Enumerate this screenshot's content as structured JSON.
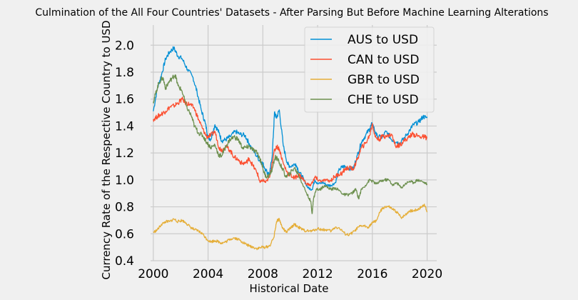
{
  "chart_data": {
    "type": "line",
    "title": "Culmination of the All Four Countries' Datasets - After Parsing But Before Machine Learning Alterations",
    "xlabel": "Historical Date",
    "ylabel": "Currency Rate of the Respective Country to USD",
    "xlim": [
      1999.8,
      2020.7
    ],
    "ylim": [
      0.4,
      2.15
    ],
    "xticks": [
      2000,
      2004,
      2008,
      2012,
      2016,
      2020
    ],
    "xtick_labels": [
      "2000",
      "2004",
      "2008",
      "2012",
      "2016",
      "2020"
    ],
    "yticks": [
      0.4,
      0.6,
      0.8,
      1.0,
      1.2,
      1.4,
      1.6,
      1.8,
      2.0
    ],
    "ytick_labels": [
      "0.4",
      "0.6",
      "0.8",
      "1.0",
      "1.2",
      "1.4",
      "1.6",
      "1.8",
      "2.0"
    ],
    "grid": true,
    "legend_position": "top-right",
    "series": [
      {
        "name": "AUS to USD",
        "color": "#008fd5",
        "points": [
          [
            2000.0,
            1.51
          ],
          [
            2000.3,
            1.68
          ],
          [
            2000.6,
            1.78
          ],
          [
            2000.9,
            1.9
          ],
          [
            2001.2,
            1.95
          ],
          [
            2001.5,
            1.98
          ],
          [
            2001.8,
            1.92
          ],
          [
            2002.1,
            1.9
          ],
          [
            2002.5,
            1.82
          ],
          [
            2002.9,
            1.76
          ],
          [
            2003.2,
            1.65
          ],
          [
            2003.5,
            1.52
          ],
          [
            2003.8,
            1.42
          ],
          [
            2004.0,
            1.32
          ],
          [
            2004.2,
            1.3
          ],
          [
            2004.5,
            1.41
          ],
          [
            2004.8,
            1.35
          ],
          [
            2005.0,
            1.29
          ],
          [
            2005.3,
            1.3
          ],
          [
            2005.6,
            1.32
          ],
          [
            2006.0,
            1.36
          ],
          [
            2006.3,
            1.34
          ],
          [
            2006.7,
            1.33
          ],
          [
            2007.0,
            1.27
          ],
          [
            2007.4,
            1.2
          ],
          [
            2007.8,
            1.14
          ],
          [
            2008.0,
            1.12
          ],
          [
            2008.3,
            1.06
          ],
          [
            2008.5,
            1.04
          ],
          [
            2008.7,
            1.2
          ],
          [
            2008.85,
            1.5
          ],
          [
            2009.0,
            1.46
          ],
          [
            2009.2,
            1.52
          ],
          [
            2009.5,
            1.25
          ],
          [
            2009.8,
            1.12
          ],
          [
            2010.0,
            1.1
          ],
          [
            2010.4,
            1.12
          ],
          [
            2010.7,
            1.05
          ],
          [
            2011.0,
            1.0
          ],
          [
            2011.3,
            0.94
          ],
          [
            2011.6,
            0.93
          ],
          [
            2011.8,
            1.0
          ],
          [
            2012.0,
            0.97
          ],
          [
            2012.4,
            0.98
          ],
          [
            2012.7,
            0.96
          ],
          [
            2013.0,
            0.96
          ],
          [
            2013.3,
            0.98
          ],
          [
            2013.6,
            1.08
          ],
          [
            2013.9,
            1.1
          ],
          [
            2014.2,
            1.09
          ],
          [
            2014.6,
            1.08
          ],
          [
            2014.9,
            1.18
          ],
          [
            2015.2,
            1.28
          ],
          [
            2015.5,
            1.33
          ],
          [
            2015.8,
            1.38
          ],
          [
            2016.0,
            1.42
          ],
          [
            2016.3,
            1.33
          ],
          [
            2016.7,
            1.31
          ],
          [
            2017.0,
            1.36
          ],
          [
            2017.4,
            1.3
          ],
          [
            2017.8,
            1.28
          ],
          [
            2018.0,
            1.27
          ],
          [
            2018.4,
            1.32
          ],
          [
            2018.8,
            1.38
          ],
          [
            2019.0,
            1.41
          ],
          [
            2019.4,
            1.43
          ],
          [
            2019.7,
            1.47
          ],
          [
            2020.0,
            1.46
          ]
        ]
      },
      {
        "name": "CAN to USD",
        "color": "#fc4f30",
        "points": [
          [
            2000.0,
            1.45
          ],
          [
            2000.3,
            1.47
          ],
          [
            2000.6,
            1.49
          ],
          [
            2000.9,
            1.51
          ],
          [
            2001.2,
            1.54
          ],
          [
            2001.5,
            1.55
          ],
          [
            2001.8,
            1.57
          ],
          [
            2002.1,
            1.6
          ],
          [
            2002.4,
            1.57
          ],
          [
            2002.7,
            1.56
          ],
          [
            2003.0,
            1.53
          ],
          [
            2003.3,
            1.45
          ],
          [
            2003.6,
            1.38
          ],
          [
            2003.9,
            1.32
          ],
          [
            2004.2,
            1.33
          ],
          [
            2004.5,
            1.36
          ],
          [
            2004.8,
            1.24
          ],
          [
            2005.0,
            1.22
          ],
          [
            2005.3,
            1.25
          ],
          [
            2005.6,
            1.22
          ],
          [
            2005.9,
            1.17
          ],
          [
            2006.2,
            1.15
          ],
          [
            2006.5,
            1.12
          ],
          [
            2006.8,
            1.13
          ],
          [
            2007.0,
            1.16
          ],
          [
            2007.3,
            1.1
          ],
          [
            2007.6,
            1.05
          ],
          [
            2007.8,
            0.98
          ],
          [
            2008.0,
            1.0
          ],
          [
            2008.2,
            0.98
          ],
          [
            2008.5,
            1.02
          ],
          [
            2008.8,
            1.2
          ],
          [
            2009.0,
            1.25
          ],
          [
            2009.2,
            1.23
          ],
          [
            2009.5,
            1.12
          ],
          [
            2009.8,
            1.05
          ],
          [
            2010.0,
            1.04
          ],
          [
            2010.3,
            1.01
          ],
          [
            2010.6,
            1.04
          ],
          [
            2010.9,
            1.01
          ],
          [
            2011.2,
            0.97
          ],
          [
            2011.5,
            0.96
          ],
          [
            2011.8,
            1.02
          ],
          [
            2012.0,
            1.0
          ],
          [
            2012.3,
            0.99
          ],
          [
            2012.6,
            1.0
          ],
          [
            2012.9,
            0.99
          ],
          [
            2013.2,
            1.02
          ],
          [
            2013.5,
            1.04
          ],
          [
            2013.8,
            1.05
          ],
          [
            2014.0,
            1.08
          ],
          [
            2014.3,
            1.09
          ],
          [
            2014.6,
            1.08
          ],
          [
            2014.9,
            1.15
          ],
          [
            2015.2,
            1.24
          ],
          [
            2015.5,
            1.27
          ],
          [
            2015.8,
            1.33
          ],
          [
            2016.0,
            1.42
          ],
          [
            2016.2,
            1.32
          ],
          [
            2016.5,
            1.3
          ],
          [
            2016.8,
            1.33
          ],
          [
            2017.0,
            1.32
          ],
          [
            2017.4,
            1.34
          ],
          [
            2017.7,
            1.25
          ],
          [
            2018.0,
            1.26
          ],
          [
            2018.3,
            1.29
          ],
          [
            2018.6,
            1.31
          ],
          [
            2018.9,
            1.34
          ],
          [
            2019.2,
            1.33
          ],
          [
            2019.5,
            1.32
          ],
          [
            2019.8,
            1.32
          ],
          [
            2020.0,
            1.31
          ]
        ]
      },
      {
        "name": "GBR to USD",
        "color": "#e5ae38",
        "points": [
          [
            2000.0,
            0.61
          ],
          [
            2000.3,
            0.63
          ],
          [
            2000.6,
            0.67
          ],
          [
            2000.9,
            0.69
          ],
          [
            2001.2,
            0.69
          ],
          [
            2001.5,
            0.71
          ],
          [
            2001.8,
            0.69
          ],
          [
            2002.1,
            0.7
          ],
          [
            2002.4,
            0.68
          ],
          [
            2002.7,
            0.65
          ],
          [
            2003.0,
            0.63
          ],
          [
            2003.3,
            0.62
          ],
          [
            2003.6,
            0.6
          ],
          [
            2003.9,
            0.56
          ],
          [
            2004.2,
            0.54
          ],
          [
            2004.5,
            0.55
          ],
          [
            2004.8,
            0.54
          ],
          [
            2005.0,
            0.53
          ],
          [
            2005.3,
            0.54
          ],
          [
            2005.6,
            0.56
          ],
          [
            2005.9,
            0.57
          ],
          [
            2006.2,
            0.56
          ],
          [
            2006.5,
            0.54
          ],
          [
            2006.8,
            0.52
          ],
          [
            2007.0,
            0.51
          ],
          [
            2007.3,
            0.5
          ],
          [
            2007.6,
            0.49
          ],
          [
            2007.9,
            0.5
          ],
          [
            2008.2,
            0.5
          ],
          [
            2008.5,
            0.51
          ],
          [
            2008.8,
            0.57
          ],
          [
            2009.0,
            0.69
          ],
          [
            2009.2,
            0.71
          ],
          [
            2009.4,
            0.65
          ],
          [
            2009.7,
            0.61
          ],
          [
            2010.0,
            0.64
          ],
          [
            2010.3,
            0.67
          ],
          [
            2010.6,
            0.65
          ],
          [
            2010.9,
            0.63
          ],
          [
            2011.2,
            0.62
          ],
          [
            2011.6,
            0.62
          ],
          [
            2012.0,
            0.64
          ],
          [
            2012.3,
            0.63
          ],
          [
            2012.6,
            0.63
          ],
          [
            2013.0,
            0.62
          ],
          [
            2013.3,
            0.65
          ],
          [
            2013.6,
            0.64
          ],
          [
            2014.0,
            0.6
          ],
          [
            2014.3,
            0.59
          ],
          [
            2014.7,
            0.62
          ],
          [
            2015.0,
            0.65
          ],
          [
            2015.3,
            0.66
          ],
          [
            2015.7,
            0.65
          ],
          [
            2016.0,
            0.68
          ],
          [
            2016.3,
            0.7
          ],
          [
            2016.6,
            0.77
          ],
          [
            2016.9,
            0.8
          ],
          [
            2017.2,
            0.8
          ],
          [
            2017.5,
            0.78
          ],
          [
            2017.8,
            0.76
          ],
          [
            2018.1,
            0.72
          ],
          [
            2018.4,
            0.74
          ],
          [
            2018.7,
            0.77
          ],
          [
            2019.0,
            0.77
          ],
          [
            2019.3,
            0.78
          ],
          [
            2019.6,
            0.8
          ],
          [
            2019.8,
            0.82
          ],
          [
            2020.0,
            0.76
          ]
        ]
      },
      {
        "name": "CHE to USD",
        "color": "#6d904f",
        "points": [
          [
            2000.0,
            1.58
          ],
          [
            2000.2,
            1.65
          ],
          [
            2000.4,
            1.72
          ],
          [
            2000.7,
            1.76
          ],
          [
            2000.9,
            1.68
          ],
          [
            2001.1,
            1.72
          ],
          [
            2001.4,
            1.76
          ],
          [
            2001.6,
            1.78
          ],
          [
            2001.8,
            1.7
          ],
          [
            2002.1,
            1.66
          ],
          [
            2002.4,
            1.55
          ],
          [
            2002.8,
            1.47
          ],
          [
            2003.0,
            1.4
          ],
          [
            2003.3,
            1.35
          ],
          [
            2003.6,
            1.33
          ],
          [
            2003.9,
            1.28
          ],
          [
            2004.2,
            1.24
          ],
          [
            2004.5,
            1.26
          ],
          [
            2004.8,
            1.18
          ],
          [
            2005.0,
            1.18
          ],
          [
            2005.3,
            1.25
          ],
          [
            2005.6,
            1.3
          ],
          [
            2005.9,
            1.32
          ],
          [
            2006.2,
            1.3
          ],
          [
            2006.5,
            1.24
          ],
          [
            2006.8,
            1.24
          ],
          [
            2007.0,
            1.25
          ],
          [
            2007.3,
            1.22
          ],
          [
            2007.6,
            1.2
          ],
          [
            2007.9,
            1.13
          ],
          [
            2008.1,
            1.05
          ],
          [
            2008.3,
            1.02
          ],
          [
            2008.6,
            1.05
          ],
          [
            2008.9,
            1.17
          ],
          [
            2009.1,
            1.15
          ],
          [
            2009.4,
            1.09
          ],
          [
            2009.7,
            1.02
          ],
          [
            2010.0,
            1.05
          ],
          [
            2010.3,
            1.09
          ],
          [
            2010.6,
            1.04
          ],
          [
            2010.9,
            0.97
          ],
          [
            2011.2,
            0.9
          ],
          [
            2011.5,
            0.84
          ],
          [
            2011.6,
            0.75
          ],
          [
            2011.7,
            0.86
          ],
          [
            2011.9,
            0.93
          ],
          [
            2012.2,
            0.93
          ],
          [
            2012.5,
            0.96
          ],
          [
            2012.8,
            0.94
          ],
          [
            2013.0,
            0.93
          ],
          [
            2013.3,
            0.94
          ],
          [
            2013.6,
            0.92
          ],
          [
            2013.9,
            0.89
          ],
          [
            2014.2,
            0.89
          ],
          [
            2014.5,
            0.9
          ],
          [
            2014.8,
            0.93
          ],
          [
            2015.0,
            0.86
          ],
          [
            2015.2,
            0.93
          ],
          [
            2015.5,
            0.96
          ],
          [
            2015.8,
            1.0
          ],
          [
            2016.0,
            0.99
          ],
          [
            2016.3,
            0.97
          ],
          [
            2016.6,
            0.99
          ],
          [
            2016.9,
            1.0
          ],
          [
            2017.2,
            1.0
          ],
          [
            2017.5,
            0.96
          ],
          [
            2017.8,
            0.98
          ],
          [
            2018.1,
            0.94
          ],
          [
            2018.4,
            0.97
          ],
          [
            2018.7,
            0.99
          ],
          [
            2019.0,
            0.98
          ],
          [
            2019.3,
            1.0
          ],
          [
            2019.6,
            0.99
          ],
          [
            2020.0,
            0.97
          ]
        ]
      }
    ]
  }
}
